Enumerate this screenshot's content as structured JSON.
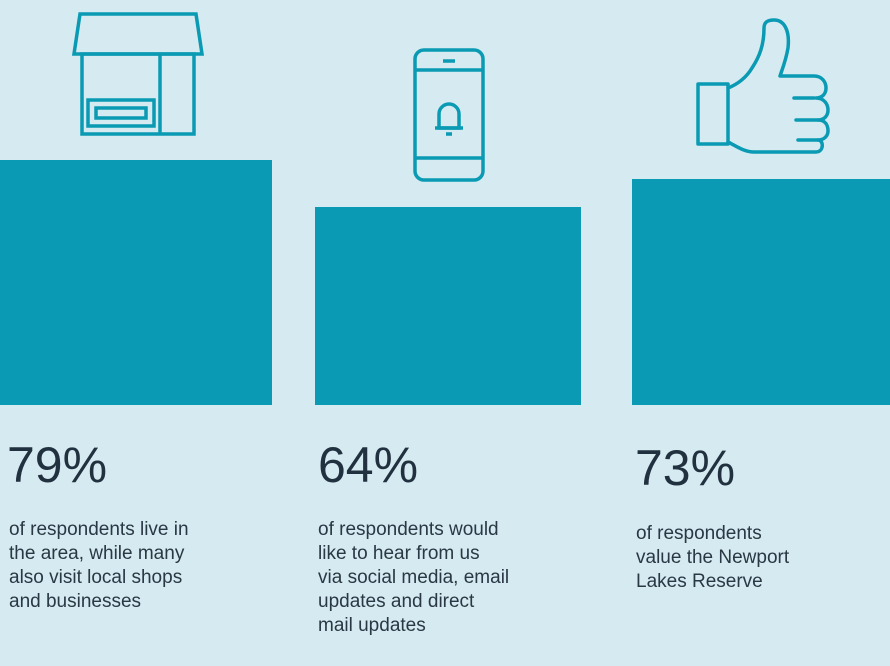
{
  "chart_data": {
    "type": "bar",
    "colors": {
      "bar": "#0a9ab3",
      "background": "#d5ebf1",
      "icon": "#0a9ab3"
    },
    "items": [
      {
        "value": 79,
        "label": "79%",
        "icon": "storefront-icon",
        "description": [
          "of respondents live in",
          "the area, while many",
          "also visit local shops",
          "and businesses"
        ]
      },
      {
        "value": 64,
        "label": "64%",
        "icon": "smartphone-notification-icon",
        "description": [
          "of respondents would",
          "like to hear from us",
          "via social media, email",
          "updates and direct",
          "mail updates"
        ]
      },
      {
        "value": 73,
        "label": "73%",
        "icon": "thumbs-up-icon",
        "description": [
          "of respondents",
          "value the Newport",
          "Lakes Reserve"
        ]
      }
    ]
  }
}
